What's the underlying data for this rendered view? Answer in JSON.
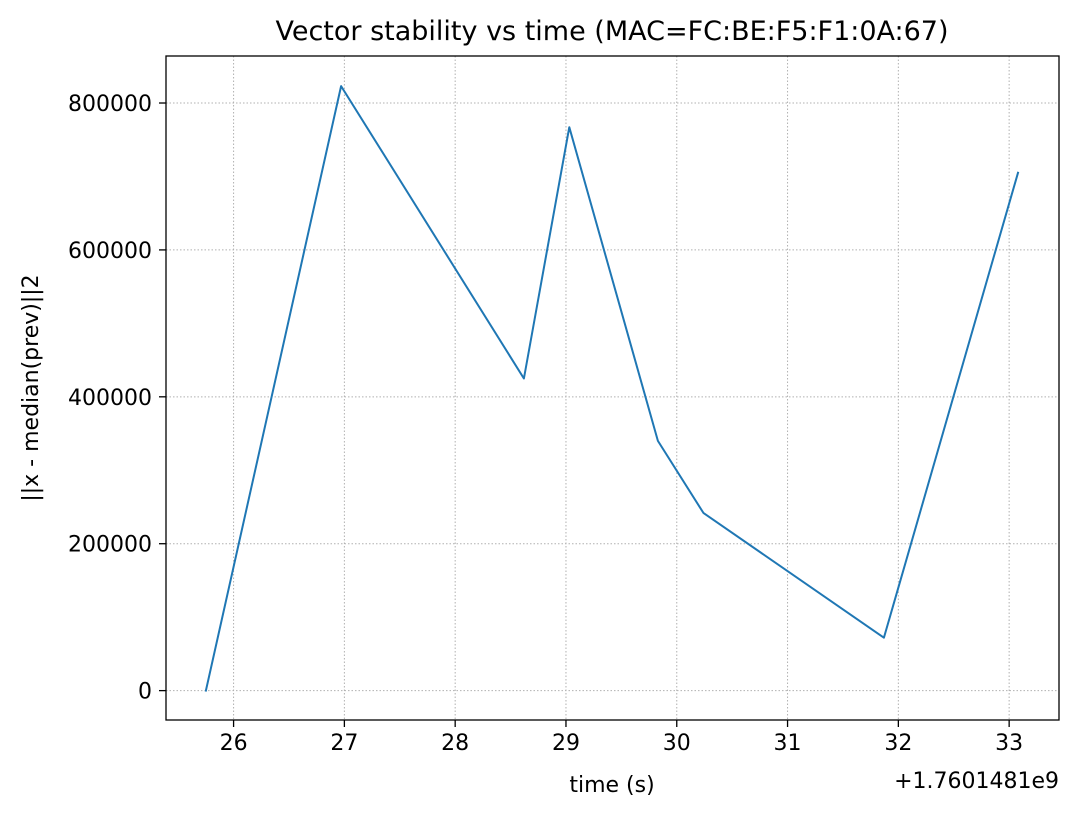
{
  "chart_data": {
    "type": "line",
    "title": "Vector stability vs time (MAC=FC:BE:F5:F1:0A:67)",
    "xlabel": "time (s)",
    "ylabel": "||x - median(prev)||2",
    "x_offset_label": "+1.7601481e9",
    "xlim": [
      25.39,
      33.45
    ],
    "ylim": [
      -40000,
      864000
    ],
    "x_ticks": [
      26,
      27,
      28,
      29,
      30,
      31,
      32,
      33
    ],
    "x_tick_labels": [
      "26",
      "27",
      "28",
      "29",
      "30",
      "31",
      "32",
      "33"
    ],
    "y_ticks": [
      0,
      200000,
      400000,
      600000,
      800000
    ],
    "y_tick_labels": [
      "0",
      "200000",
      "400000",
      "600000",
      "800000"
    ],
    "grid": true,
    "series": [
      {
        "color": "#1f77b4",
        "x": [
          25.75,
          26.97,
          28.62,
          29.03,
          29.83,
          30.24,
          31.87,
          33.08
        ],
        "y": [
          0,
          823000,
          425000,
          767000,
          340000,
          242000,
          72000,
          705000
        ]
      }
    ]
  }
}
